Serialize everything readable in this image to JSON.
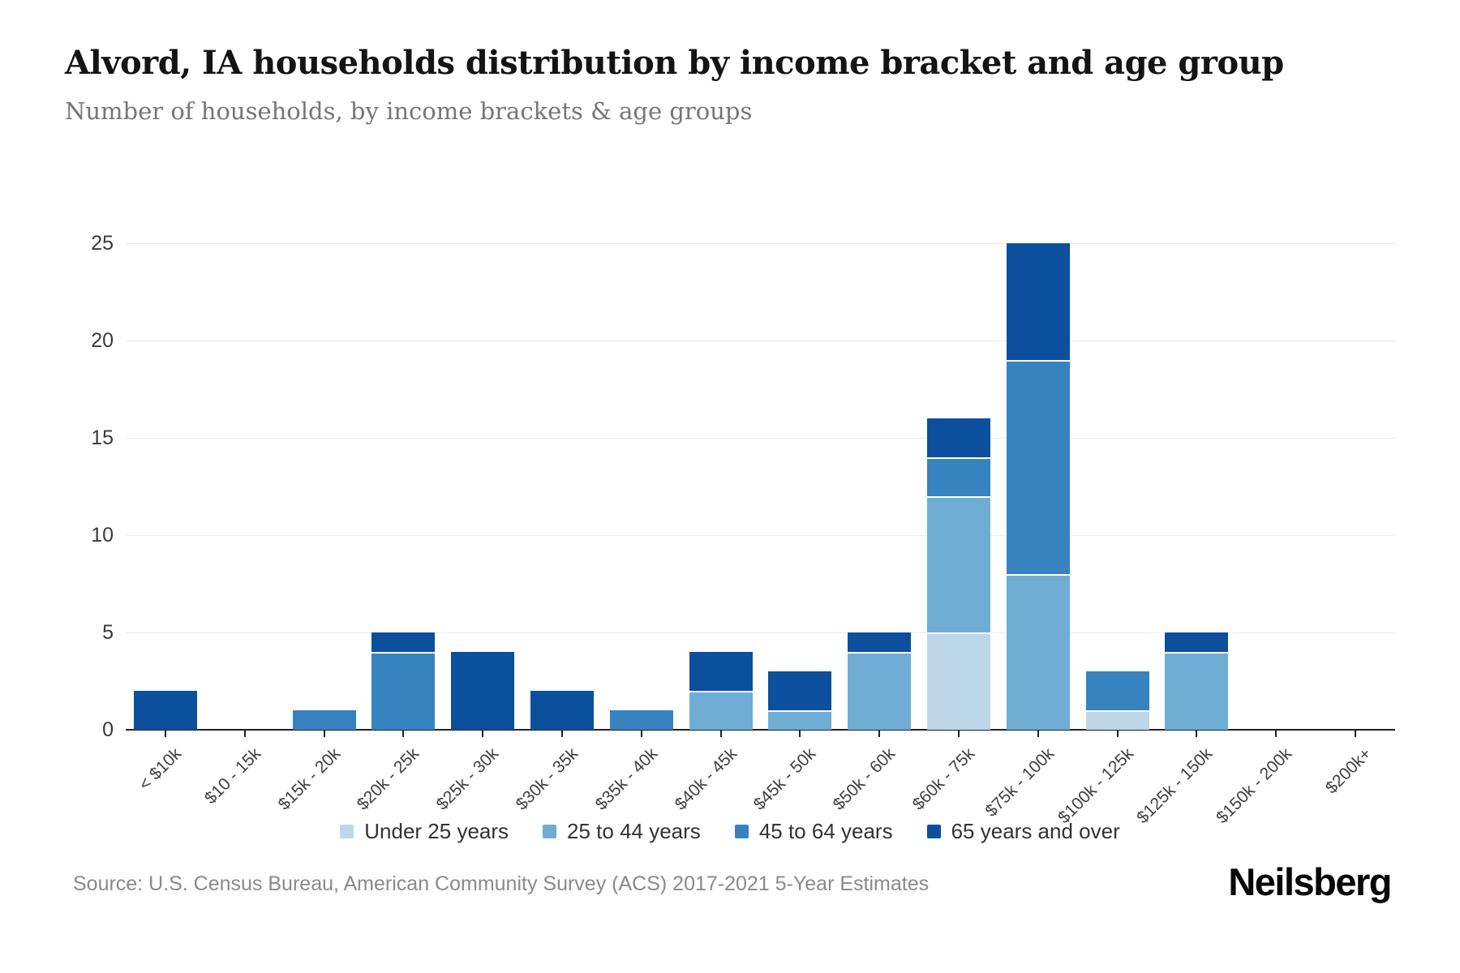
{
  "header": {
    "title": "Alvord, IA households distribution by income bracket and age group",
    "subtitle": "Number of households, by income brackets & age groups"
  },
  "chart_data": {
    "type": "bar",
    "stacked": true,
    "title": "Alvord, IA households distribution by income bracket and age group",
    "categories": [
      "< $10k",
      "$10 - 15k",
      "$15k - 20k",
      "$20k - 25k",
      "$25k - 30k",
      "$30k - 35k",
      "$35k - 40k",
      "$40k - 45k",
      "$45k - 50k",
      "$50k - 60k",
      "$60k - 75k",
      "$75k - 100k",
      "$100k - 125k",
      "$125k - 150k",
      "$150k - 200k",
      "$200k+"
    ],
    "series": [
      {
        "name": "Under 25 years",
        "color": "#bed7e8",
        "values": [
          0,
          0,
          0,
          0,
          0,
          0,
          0,
          0,
          0,
          0,
          5,
          0,
          1,
          0,
          0,
          0
        ]
      },
      {
        "name": "25 to 44 years",
        "color": "#70add4",
        "values": [
          0,
          0,
          0,
          0,
          0,
          0,
          0,
          2,
          1,
          4,
          7,
          8,
          0,
          4,
          0,
          0
        ]
      },
      {
        "name": "45 to 64 years",
        "color": "#3783c0",
        "values": [
          0,
          0,
          1,
          4,
          0,
          0,
          1,
          0,
          0,
          0,
          2,
          11,
          2,
          0,
          0,
          0
        ]
      },
      {
        "name": "65 years and over",
        "color": "#0c4f9c",
        "values": [
          2,
          0,
          0,
          1,
          4,
          2,
          0,
          2,
          2,
          1,
          2,
          6,
          0,
          1,
          0,
          0
        ]
      }
    ],
    "totals": [
      2,
      0,
      1,
      5,
      4,
      2,
      1,
      4,
      3,
      5,
      16,
      25,
      3,
      5,
      0,
      0
    ],
    "xlabel": "",
    "ylabel": "",
    "ylim": [
      0,
      25
    ],
    "y_ticks": [
      0,
      5,
      10,
      15,
      20,
      25
    ],
    "grid": true,
    "legend_position": "bottom"
  },
  "footer": {
    "source": "Source: U.S. Census Bureau, American Community Survey (ACS) 2017-2021 5-Year Estimates",
    "brand": "Neilsberg"
  }
}
